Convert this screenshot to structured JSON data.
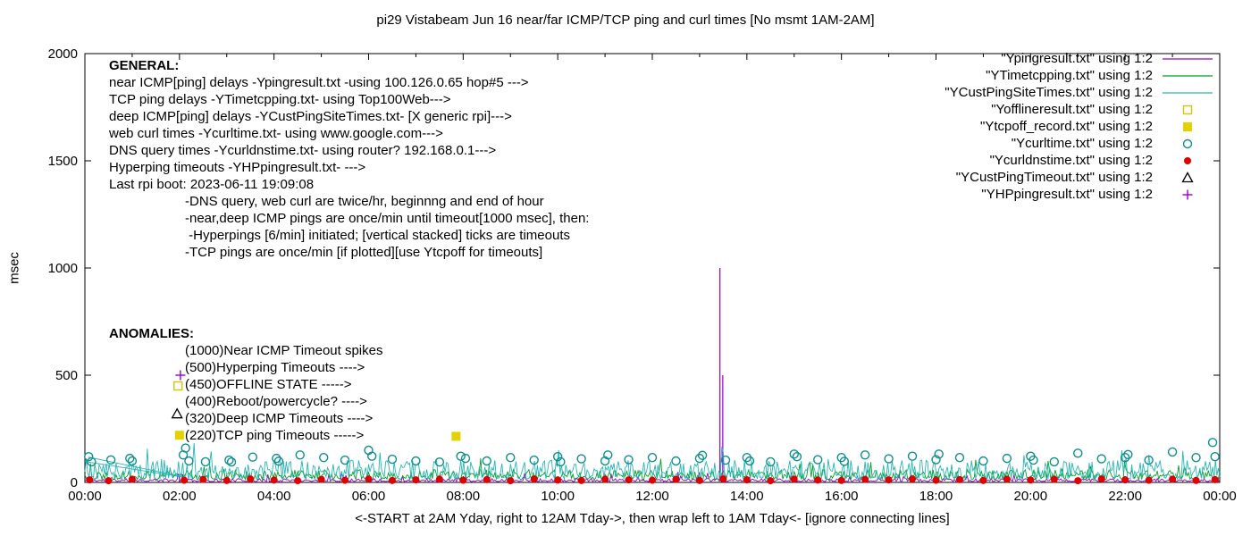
{
  "chart_data": {
    "type": "line",
    "title": "pi29 Vistabeam Jun 16  near/far ICMP/TCP ping and curl times [No msmt 1AM-2AM]",
    "xlabel": "<-START at 2AM Yday, right to 12AM Tday->, then wrap left to 1AM Tday<- [ignore connecting lines]",
    "ylabel": "msec",
    "ylim": [
      0,
      2000
    ],
    "x_hours": 24,
    "yticks": [
      0,
      500,
      1000,
      1500,
      2000
    ],
    "ytick_labels": [
      "0",
      "500",
      "1000",
      "1500",
      "2000"
    ],
    "xtick_labels": [
      "00:00",
      "02:00",
      "04:00",
      "06:00",
      "08:00",
      "10:00",
      "12:00",
      "14:00",
      "16:00",
      "18:00",
      "20:00",
      "22:00",
      "00:00"
    ],
    "grid": false,
    "legend_position": "top-right",
    "series": [
      {
        "name": "Ypingresult",
        "legend_label": "\"Ypingresult.txt\" using 1:2",
        "color": "#9400d3",
        "style": "line",
        "noise": {
          "base": 4,
          "amp": 14,
          "seed": 11
        },
        "spikes": [
          [
            13.43,
            1000
          ],
          [
            13.49,
            500
          ]
        ]
      },
      {
        "name": "YTimetcpping",
        "legend_label": "\"YTimetcpping.txt\" using 1:2",
        "color": "#00a02a",
        "style": "line",
        "noise": {
          "base": 14,
          "amp": 46,
          "seed": 22
        },
        "spikes": []
      },
      {
        "name": "YCustPingSiteTimes",
        "legend_label": "\"YCustPingSiteTimes.txt\" using 1:2",
        "color": "#2ab5b5",
        "style": "line",
        "noise": {
          "base": 16,
          "amp": 88,
          "seed": 33
        },
        "spikes": [],
        "connectors": [
          [
            0.07,
            118,
            2.0,
            30
          ],
          [
            0.07,
            95,
            2.05,
            26
          ]
        ]
      },
      {
        "name": "Yofflineresult",
        "legend_label": "\"Yofflineresult.txt\" using 1:2",
        "color": "#d8c400",
        "style": "points",
        "marker": "square-open",
        "points": []
      },
      {
        "name": "Ytcpoff_record",
        "legend_label": "\"Ytcpoff_record.txt\" using 1:2",
        "color": "#e3d200",
        "style": "points",
        "marker": "square-filled",
        "points": [
          [
            7.85,
            215
          ]
        ]
      },
      {
        "name": "Ycurltime",
        "legend_label": "\"Ycurltime.txt\" using 1:2",
        "color": "#0e8f8f",
        "style": "points",
        "marker": "circle-open",
        "points": [
          [
            0.08,
            120
          ],
          [
            0.14,
            96
          ],
          [
            0.55,
            105
          ],
          [
            0.95,
            112
          ],
          [
            1.0,
            100
          ],
          [
            2.08,
            128
          ],
          [
            2.13,
            160
          ],
          [
            2.2,
            100
          ],
          [
            2.55,
            96
          ],
          [
            3.05,
            104
          ],
          [
            3.1,
            95
          ],
          [
            3.55,
            118
          ],
          [
            4.05,
            112
          ],
          [
            4.1,
            99
          ],
          [
            4.55,
            128
          ],
          [
            5.05,
            116
          ],
          [
            5.5,
            104
          ],
          [
            6.0,
            150
          ],
          [
            6.07,
            122
          ],
          [
            6.5,
            108
          ],
          [
            7.0,
            100
          ],
          [
            7.5,
            95
          ],
          [
            7.95,
            122
          ],
          [
            8.05,
            112
          ],
          [
            8.5,
            100
          ],
          [
            9.0,
            116
          ],
          [
            9.5,
            104
          ],
          [
            10.0,
            120
          ],
          [
            10.06,
            96
          ],
          [
            10.5,
            110
          ],
          [
            11.0,
            100
          ],
          [
            11.06,
            128
          ],
          [
            11.5,
            106
          ],
          [
            12.0,
            116
          ],
          [
            12.5,
            100
          ],
          [
            13.0,
            112
          ],
          [
            13.06,
            126
          ],
          [
            13.55,
            104
          ],
          [
            14.0,
            116
          ],
          [
            14.06,
            100
          ],
          [
            14.5,
            96
          ],
          [
            15.0,
            132
          ],
          [
            15.06,
            120
          ],
          [
            15.5,
            106
          ],
          [
            16.0,
            116
          ],
          [
            16.06,
            98
          ],
          [
            16.5,
            128
          ],
          [
            17.0,
            110
          ],
          [
            17.5,
            122
          ],
          [
            18.0,
            106
          ],
          [
            18.06,
            132
          ],
          [
            18.5,
            116
          ],
          [
            19.0,
            100
          ],
          [
            19.5,
            112
          ],
          [
            20.0,
            122
          ],
          [
            20.06,
            104
          ],
          [
            20.5,
            96
          ],
          [
            21.0,
            136
          ],
          [
            21.5,
            110
          ],
          [
            22.0,
            116
          ],
          [
            22.06,
            130
          ],
          [
            22.5,
            104
          ],
          [
            23.0,
            142
          ],
          [
            23.5,
            116
          ],
          [
            23.85,
            186
          ],
          [
            23.9,
            120
          ]
        ]
      },
      {
        "name": "Ycurldnstime",
        "legend_label": "\"Ycurldnstime.txt\" using 1:2",
        "color": "#e00000",
        "style": "points",
        "marker": "circle-filled",
        "points": [
          [
            0.1,
            12
          ],
          [
            0.5,
            8
          ],
          [
            1.0,
            15
          ],
          [
            2.1,
            10
          ],
          [
            2.5,
            14
          ],
          [
            3.0,
            9
          ],
          [
            3.5,
            16
          ],
          [
            4.0,
            11
          ],
          [
            4.5,
            8
          ],
          [
            5.0,
            14
          ],
          [
            5.5,
            10
          ],
          [
            6.0,
            16
          ],
          [
            6.5,
            9
          ],
          [
            7.0,
            12
          ],
          [
            7.5,
            15
          ],
          [
            8.0,
            10
          ],
          [
            8.5,
            13
          ],
          [
            9.0,
            8
          ],
          [
            9.5,
            16
          ],
          [
            10.0,
            11
          ],
          [
            10.5,
            9
          ],
          [
            11.0,
            15
          ],
          [
            11.5,
            12
          ],
          [
            12.0,
            10
          ],
          [
            12.5,
            14
          ],
          [
            13.0,
            9
          ],
          [
            13.5,
            16
          ],
          [
            14.0,
            12
          ],
          [
            14.5,
            8
          ],
          [
            15.0,
            15
          ],
          [
            15.5,
            11
          ],
          [
            16.0,
            9
          ],
          [
            16.5,
            14
          ],
          [
            17.0,
            12
          ],
          [
            17.5,
            16
          ],
          [
            18.0,
            10
          ],
          [
            18.5,
            13
          ],
          [
            19.0,
            9
          ],
          [
            19.5,
            15
          ],
          [
            20.0,
            11
          ],
          [
            20.5,
            14
          ],
          [
            21.0,
            8
          ],
          [
            21.5,
            16
          ],
          [
            22.0,
            12
          ],
          [
            22.5,
            10
          ],
          [
            23.0,
            15
          ],
          [
            23.5,
            9
          ],
          [
            23.9,
            13
          ]
        ]
      },
      {
        "name": "YCustPingTimeout",
        "legend_label": "\"YCustPingTimeout.txt\" using 1:2",
        "color": "#000000",
        "style": "points",
        "marker": "triangle-open",
        "points": []
      },
      {
        "name": "YHPpingresult",
        "legend_label": "\"YHPpingresult.txt\" using 1:2",
        "color": "#9400d3",
        "style": "points",
        "marker": "plus",
        "points": []
      }
    ],
    "anomaly_markers": [
      {
        "marker": "plus",
        "color": "#9400d3",
        "x": 2.02,
        "y": 500
      },
      {
        "marker": "square-open",
        "color": "#d8c400",
        "x": 1.97,
        "y": 450
      },
      {
        "marker": "triangle-open",
        "color": "#000000",
        "x": 1.95,
        "y": 320
      },
      {
        "marker": "square-filled",
        "color": "#e3d200",
        "x": 2.0,
        "y": 220
      }
    ],
    "annotations": {
      "general_heading": "GENERAL:",
      "general_lines": [
        "near ICMP[ping] delays -Ypingresult.txt -using 100.126.0.65 hop#5 --->",
        "TCP ping delays -YTimetcpping.txt- using Top100Web--->",
        "deep ICMP[ping] delays -YCustPingSiteTimes.txt- [X generic rpi]--->",
        "web curl times -Ycurltime.txt- using www.google.com--->",
        "DNS query times -Ycurldnstime.txt- using router? 192.168.0.1--->",
        "Hyperping timeouts -YHPpingresult.txt- --->",
        "Last rpi boot: 2023-06-11 19:09:08"
      ],
      "note_lines": [
        "-DNS query, web curl are twice/hr, beginnng and end of hour",
        "-near,deep ICMP pings are once/min until timeout[1000 msec], then:",
        " -Hyperpings [6/min] initiated; [vertical stacked] ticks are timeouts",
        "-TCP pings are once/min [if plotted][use Ytcpoff for timeouts]"
      ],
      "anomalies_heading": "ANOMALIES:",
      "anomaly_items": [
        "(1000)Near ICMP Timeout spikes",
        "(500)Hyperping Timeouts ---->",
        "(450)OFFLINE STATE ----->",
        "(400)Reboot/powercycle? ---->",
        "(320)Deep ICMP Timeouts ---->",
        "(220)TCP ping Timeouts ----->"
      ]
    }
  }
}
